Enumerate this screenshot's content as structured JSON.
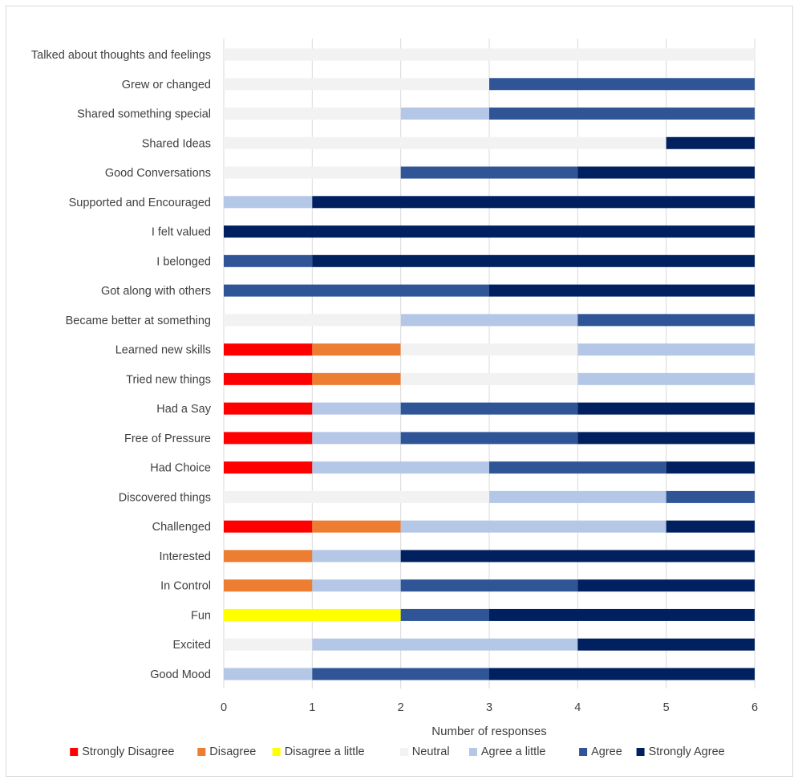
{
  "chart_data": {
    "type": "bar",
    "orientation": "horizontal",
    "stacked": true,
    "xlabel": "Number of responses",
    "ylabel": "",
    "xlim": [
      0,
      6
    ],
    "xticks": [
      "0",
      "1",
      "2",
      "3",
      "4",
      "5",
      "6"
    ],
    "grid": "vertical",
    "legend_position": "bottom",
    "categories": [
      "Talked about thoughts and feelings",
      "Grew or changed",
      "Shared something special",
      "Shared Ideas",
      "Good Conversations",
      "Supported and Encouraged",
      "I felt valued",
      "I belonged",
      "Got along with others",
      "Became better at something",
      "Learned new skills",
      "Tried new things",
      "Had a Say",
      "Free of Pressure",
      "Had Choice",
      "Discovered things",
      "Challenged",
      "Interested",
      "In Control",
      "Fun",
      "Excited",
      "Good Mood"
    ],
    "series": [
      {
        "name": "Strongly Disagree",
        "color": "#ff0000",
        "values": [
          0,
          0,
          0,
          0,
          0,
          0,
          0,
          0,
          0,
          0,
          1,
          1,
          1,
          1,
          1,
          0,
          1,
          0,
          0,
          0,
          0,
          0
        ]
      },
      {
        "name": "Disagree",
        "color": "#ed7d31",
        "values": [
          0,
          0,
          0,
          0,
          0,
          0,
          0,
          0,
          0,
          0,
          1,
          1,
          0,
          0,
          0,
          0,
          1,
          1,
          1,
          0,
          0,
          0
        ]
      },
      {
        "name": "Disagree a little",
        "color": "#ffff00",
        "values": [
          0,
          0,
          0,
          0,
          0,
          0,
          0,
          0,
          0,
          0,
          0,
          0,
          0,
          0,
          0,
          0,
          0,
          0,
          0,
          2,
          0,
          0
        ]
      },
      {
        "name": "Neutral",
        "color": "#f2f2f2",
        "values": [
          6,
          3,
          2,
          5,
          2,
          0,
          0,
          0,
          0,
          2,
          2,
          2,
          0,
          0,
          0,
          3,
          0,
          0,
          0,
          0,
          1,
          0
        ]
      },
      {
        "name": "Agree a little",
        "color": "#b4c7e7",
        "values": [
          0,
          0,
          1,
          0,
          0,
          1,
          0,
          0,
          0,
          2,
          2,
          2,
          1,
          1,
          2,
          2,
          3,
          1,
          1,
          0,
          3,
          1
        ]
      },
      {
        "name": "Agree",
        "color": "#2f5597",
        "values": [
          0,
          3,
          3,
          0,
          2,
          0,
          0,
          1,
          3,
          2,
          0,
          0,
          2,
          2,
          2,
          1,
          0,
          0,
          2,
          1,
          0,
          2
        ]
      },
      {
        "name": "Strongly Agree",
        "color": "#002060",
        "values": [
          0,
          0,
          0,
          1,
          2,
          5,
          6,
          5,
          3,
          0,
          0,
          0,
          2,
          2,
          1,
          0,
          1,
          4,
          2,
          3,
          2,
          3
        ]
      }
    ]
  }
}
